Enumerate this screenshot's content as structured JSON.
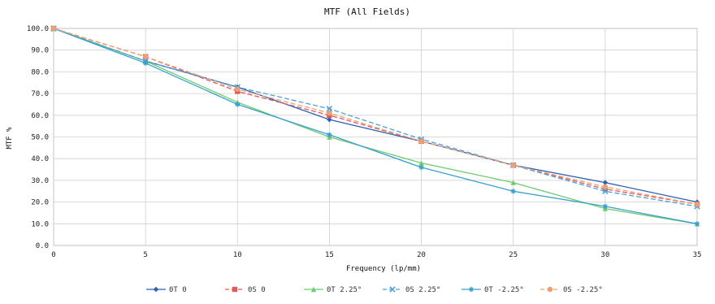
{
  "chart_data": {
    "type": "line",
    "title": "MTF (All Fields)",
    "xlabel": "Frequency (lp/mm)",
    "ylabel": "MTF %",
    "x": [
      0,
      5,
      10,
      15,
      20,
      25,
      30,
      35
    ],
    "xlim": [
      0,
      35
    ],
    "ylim": [
      0,
      100
    ],
    "x_ticks": [
      "0",
      "5",
      "10",
      "15",
      "20",
      "25",
      "30",
      "35"
    ],
    "y_ticks": [
      "0.0",
      "10.0",
      "20.0",
      "30.0",
      "40.0",
      "50.0",
      "60.0",
      "70.0",
      "80.0",
      "90.0",
      "100.0"
    ],
    "grid": true,
    "legend_position": "bottom",
    "series": [
      {
        "name": "0T 0",
        "values": [
          100,
          85,
          73,
          58,
          48,
          37,
          29,
          20
        ],
        "color": "#2f5fb3",
        "dash": false,
        "marker": "diamond"
      },
      {
        "name": "0S 0",
        "values": [
          100,
          87,
          71,
          60,
          48,
          37,
          26,
          19
        ],
        "color": "#e05a5a",
        "dash": true,
        "marker": "square"
      },
      {
        "name": "0T 2.25°",
        "values": [
          100,
          85,
          66,
          50,
          38,
          29,
          17,
          10
        ],
        "color": "#6dcc6d",
        "dash": false,
        "marker": "triangle"
      },
      {
        "name": "0S 2.25°",
        "values": [
          100,
          85,
          73,
          63,
          49,
          37,
          25,
          18
        ],
        "color": "#4da0d8",
        "dash": true,
        "marker": "x"
      },
      {
        "name": "0T -2.25°",
        "values": [
          100,
          84,
          65,
          51,
          36,
          25,
          18,
          10
        ],
        "color": "#3aa0cf",
        "dash": false,
        "marker": "star"
      },
      {
        "name": "0S -2.25°",
        "values": [
          100,
          87,
          72,
          61,
          48,
          37,
          27,
          19
        ],
        "color": "#f0a070",
        "dash": true,
        "marker": "circle"
      }
    ]
  }
}
